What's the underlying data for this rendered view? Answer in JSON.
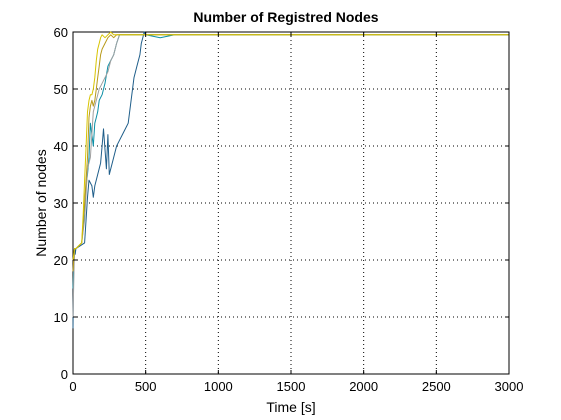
{
  "chart_data": {
    "type": "line",
    "title": "Number of Registred Nodes",
    "xlabel": "Time [s]",
    "ylabel": "Number of nodes",
    "xlim": [
      0,
      3000
    ],
    "ylim": [
      0,
      60
    ],
    "xticks": [
      0,
      500,
      1000,
      1500,
      2000,
      2500,
      3000
    ],
    "yticks": [
      0,
      10,
      20,
      30,
      40,
      50,
      60
    ],
    "grid": true,
    "series": [
      {
        "color": "#1f5e8a",
        "x": [
          0,
          5,
          10,
          15,
          20,
          80,
          100,
          110,
          130,
          140,
          150,
          170,
          190,
          200,
          210,
          230,
          240,
          250,
          280,
          300,
          320,
          340,
          380,
          420,
          440,
          460,
          470,
          480,
          490,
          500,
          600,
          700,
          800,
          900,
          1000,
          1100,
          1200,
          1300,
          1400,
          1500,
          1600,
          1700,
          1800,
          1900,
          2000,
          2100,
          2200,
          2300,
          2400,
          2500,
          2600,
          2700,
          2800,
          2900,
          3000
        ],
        "y": [
          8,
          20,
          22,
          21,
          22,
          23,
          31,
          34,
          33,
          31,
          33,
          35,
          37,
          40,
          43,
          36,
          42,
          35,
          38,
          40,
          41,
          42,
          44,
          52,
          54,
          56,
          58,
          59,
          60,
          59.5,
          59.5,
          59.5,
          59.5,
          59.5,
          59.5,
          59.5,
          59.5,
          59.5,
          59.5,
          59.5,
          59.5,
          59.5,
          59.5,
          59.5,
          59.5,
          59.5,
          59.5,
          59.5,
          59.5,
          59.5,
          59.5,
          59.5,
          59.5,
          59.5,
          59.5
        ]
      },
      {
        "color": "#0b8fa6",
        "x": [
          0,
          10,
          20,
          60,
          80,
          90,
          100,
          110,
          120,
          130,
          140,
          150,
          160,
          170,
          180,
          200,
          220,
          240,
          260,
          280,
          300,
          320,
          400,
          500,
          600,
          700,
          800,
          900,
          1000,
          1100,
          1200,
          1300,
          1400,
          1500,
          1600,
          1700,
          1800,
          1900,
          2000,
          2100,
          2200,
          2300,
          2400,
          2500,
          2600,
          2700,
          2800,
          2900,
          3000
        ],
        "y": [
          15,
          22,
          22,
          23,
          28,
          33,
          35,
          38,
          44,
          42,
          40,
          44,
          45,
          46,
          48,
          49,
          51,
          54,
          55,
          56,
          58,
          59.5,
          59.5,
          59.5,
          59,
          59.5,
          59.5,
          59.5,
          59.5,
          59.5,
          59.5,
          59.5,
          59.5,
          59.5,
          59.5,
          59.5,
          59.5,
          59.5,
          59.5,
          59.5,
          59.5,
          59.5,
          59.5,
          59.5,
          59.5,
          59.5,
          59.5,
          59.5,
          59.5
        ]
      },
      {
        "color": "#a0a0a0",
        "x": [
          0,
          10,
          20,
          60,
          80,
          100,
          120,
          140,
          160,
          180,
          200,
          220,
          240,
          260,
          280,
          300,
          320,
          400,
          500,
          600,
          700,
          800,
          900,
          1000,
          1100,
          1200,
          1300,
          1400,
          1500,
          1600,
          1700,
          1800,
          1900,
          2000,
          2100,
          2200,
          2300,
          2400,
          2500,
          2600,
          2700,
          2800,
          2900,
          3000
        ],
        "y": [
          10,
          22,
          22,
          23,
          27,
          36,
          38,
          46,
          48,
          50,
          51,
          52,
          53,
          55,
          56,
          58,
          59.5,
          59.5,
          59.5,
          59.5,
          59.5,
          59.5,
          59.5,
          59.5,
          59.5,
          59.5,
          59.5,
          59.5,
          59.5,
          59.5,
          59.5,
          59.5,
          59.5,
          59.5,
          59.5,
          59.5,
          59.5,
          59.5,
          59.5,
          59.5,
          59.5,
          59.5,
          59.5,
          59.5
        ]
      },
      {
        "color": "#b89a1a",
        "x": [
          0,
          10,
          20,
          60,
          80,
          100,
          110,
          120,
          130,
          140,
          150,
          160,
          170,
          180,
          190,
          200,
          220,
          240,
          260,
          280,
          300,
          400,
          500,
          600,
          700,
          800,
          900,
          1000,
          1100,
          1200,
          1300,
          1400,
          1500,
          1600,
          1700,
          1800,
          1900,
          2000,
          2100,
          2200,
          2300,
          2400,
          2500,
          2600,
          2700,
          2800,
          2900,
          3000
        ],
        "y": [
          18,
          22,
          22,
          23,
          30,
          38,
          45,
          47,
          48,
          47,
          48,
          50,
          52,
          54,
          56,
          57,
          58,
          59,
          59.5,
          59,
          59.5,
          59.5,
          59.5,
          59.5,
          59.5,
          59.5,
          59.5,
          59.5,
          59.5,
          59.5,
          59.5,
          59.5,
          59.5,
          59.5,
          59.5,
          59.5,
          59.5,
          59.5,
          59.5,
          59.5,
          59.5,
          59.5,
          59.5,
          59.5,
          59.5,
          59.5,
          59.5,
          59.5
        ]
      },
      {
        "color": "#d8c400",
        "x": [
          0,
          10,
          20,
          60,
          70,
          80,
          90,
          100,
          110,
          120,
          130,
          140,
          150,
          160,
          170,
          180,
          190,
          200,
          220,
          240,
          260,
          280,
          300,
          400,
          500,
          600,
          700,
          800,
          900,
          1000,
          1100,
          1200,
          1300,
          1400,
          1500,
          1600,
          1700,
          1800,
          1900,
          2000,
          2100,
          2200,
          2300,
          2400,
          2500,
          2600,
          2700,
          2800,
          2900,
          3000
        ],
        "y": [
          20,
          22,
          22,
          23,
          28,
          34,
          40,
          46,
          48,
          49,
          49,
          50,
          52,
          55,
          57,
          58,
          59,
          59.5,
          59,
          59.5,
          60,
          59.5,
          59.5,
          59.5,
          59.5,
          59.5,
          59.5,
          59.5,
          59.5,
          59.5,
          59.5,
          59.5,
          59.5,
          59.5,
          59.5,
          59.5,
          59.5,
          59.5,
          59.5,
          59.5,
          59.5,
          59.5,
          59.5,
          59.5,
          59.5,
          59.5,
          59.5,
          59.5,
          59.5,
          59.5
        ]
      }
    ]
  }
}
